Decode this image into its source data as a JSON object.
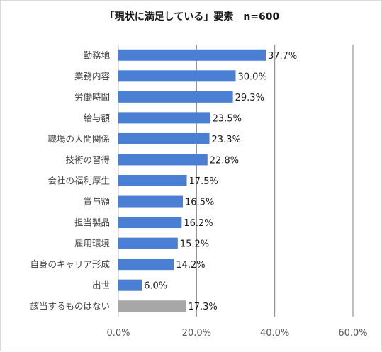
{
  "chart_data": {
    "type": "bar",
    "orientation": "horizontal",
    "title": "「現状に満足している」要素　n=600",
    "categories": [
      "勤務地",
      "業務内容",
      "労働時間",
      "給与額",
      "職場の人間関係",
      "技術の習得",
      "会社の福利厚生",
      "賞与額",
      "担当製品",
      "雇用環境",
      "自身のキャリア形成",
      "出世",
      "該当するものはない"
    ],
    "values": [
      37.7,
      30.0,
      29.3,
      23.5,
      23.3,
      22.8,
      17.5,
      16.5,
      16.2,
      15.2,
      14.2,
      6.0,
      17.3
    ],
    "value_labels": [
      "37.7%",
      "30.0%",
      "29.3%",
      "23.5%",
      "23.3%",
      "22.8%",
      "17.5%",
      "16.5%",
      "16.2%",
      "15.2%",
      "14.2%",
      "6.0%",
      "17.3%"
    ],
    "xlim": [
      0,
      60
    ],
    "x_ticks": [
      0,
      20,
      40,
      60
    ],
    "x_tick_labels": [
      "0.0%",
      "20.0%",
      "40.0%",
      "60.0%"
    ],
    "grid": true,
    "legend": "none",
    "colors": {
      "bar": "#4a7fd4",
      "bar_highlight": "#a6a6a6",
      "grid": "#7f7f7f",
      "axis": "#bfbfbf"
    },
    "highlight_index": 12
  }
}
